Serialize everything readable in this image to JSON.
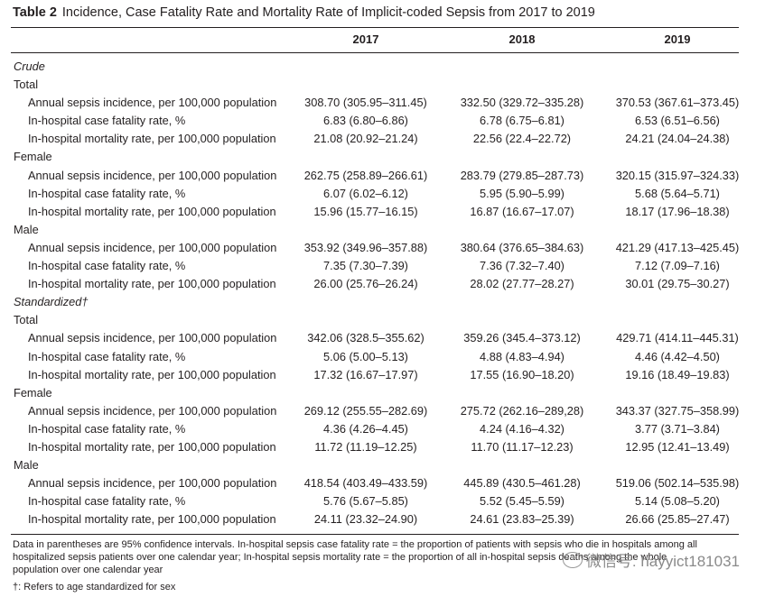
{
  "caption": {
    "label": "Table 2",
    "text": "Incidence, Case Fatality Rate and Mortality Rate of Implicit-coded Sepsis from 2017 to 2019"
  },
  "columns": [
    "2017",
    "2018",
    "2019"
  ],
  "rows": [
    {
      "type": "section",
      "label": "Crude"
    },
    {
      "type": "group",
      "label": "Total"
    },
    {
      "type": "data",
      "label": "Annual sepsis incidence, per 100,000 population",
      "values": [
        "308.70 (305.95–311.45)",
        "332.50 (329.72–335.28)",
        "370.53 (367.61–373.45)"
      ]
    },
    {
      "type": "data",
      "label": "In-hospital case fatality rate, %",
      "values": [
        "6.83 (6.80–6.86)",
        "6.78 (6.75–6.81)",
        "6.53 (6.51–6.56)"
      ]
    },
    {
      "type": "data",
      "label": "In-hospital mortality rate, per 100,000 population",
      "values": [
        "21.08 (20.92–21.24)",
        "22.56 (22.4–22.72)",
        "24.21 (24.04–24.38)"
      ]
    },
    {
      "type": "group",
      "label": "Female"
    },
    {
      "type": "data",
      "label": "Annual sepsis incidence, per 100,000 population",
      "values": [
        "262.75 (258.89–266.61)",
        "283.79 (279.85–287.73)",
        "320.15 (315.97–324.33)"
      ]
    },
    {
      "type": "data",
      "label": "In-hospital case fatality rate, %",
      "values": [
        "6.07 (6.02–6.12)",
        "5.95 (5.90–5.99)",
        "5.68 (5.64–5.71)"
      ]
    },
    {
      "type": "data",
      "label": "In-hospital mortality rate, per 100,000 population",
      "values": [
        "15.96 (15.77–16.15)",
        "16.87 (16.67–17.07)",
        "18.17 (17.96–18.38)"
      ]
    },
    {
      "type": "group",
      "label": "Male"
    },
    {
      "type": "data",
      "label": "Annual sepsis incidence, per 100,000 population",
      "values": [
        "353.92 (349.96–357.88)",
        "380.64 (376.65–384.63)",
        "421.29 (417.13–425.45)"
      ]
    },
    {
      "type": "data",
      "label": "In-hospital case fatality rate, %",
      "values": [
        "7.35 (7.30–7.39)",
        "7.36 (7.32–7.40)",
        "7.12 (7.09–7.16)"
      ]
    },
    {
      "type": "data",
      "label": "In-hospital mortality rate, per 100,000 population",
      "values": [
        "26.00 (25.76–26.24)",
        "28.02 (27.77–28.27)",
        "30.01 (29.75–30.27)"
      ]
    },
    {
      "type": "section",
      "label": "Standardized†"
    },
    {
      "type": "group",
      "label": "Total"
    },
    {
      "type": "data",
      "label": "Annual sepsis incidence, per 100,000 population",
      "values": [
        "342.06 (328.5–355.62)",
        "359.26 (345.4–373.12)",
        "429.71 (414.11–445.31)"
      ]
    },
    {
      "type": "data",
      "label": "In-hospital case fatality rate, %",
      "values": [
        "5.06 (5.00–5.13)",
        "4.88 (4.83–4.94)",
        "4.46 (4.42–4.50)"
      ]
    },
    {
      "type": "data",
      "label": "In-hospital mortality rate, per 100,000 population",
      "values": [
        "17.32 (16.67–17.97)",
        "17.55 (16.90–18.20)",
        "19.16 (18.49–19.83)"
      ]
    },
    {
      "type": "group",
      "label": "Female"
    },
    {
      "type": "data",
      "label": "Annual sepsis incidence, per 100,000 population",
      "values": [
        "269.12 (255.55–282.69)",
        "275.72 (262.16–289,28)",
        "343.37 (327.75–358.99)"
      ]
    },
    {
      "type": "data",
      "label": "In-hospital case fatality rate, %",
      "values": [
        "4.36 (4.26–4.45)",
        "4.24 (4.16–4.32)",
        "3.77 (3.71–3.84)"
      ]
    },
    {
      "type": "data",
      "label": "In-hospital mortality rate, per 100,000 population",
      "values": [
        "11.72 (11.19–12.25)",
        "11.70 (11.17–12.23)",
        "12.95 (12.41–13.49)"
      ]
    },
    {
      "type": "group",
      "label": "Male"
    },
    {
      "type": "data",
      "label": "Annual sepsis incidence, per 100,000 population",
      "values": [
        "418.54 (403.49–433.59)",
        "445.89 (430.5–461.28)",
        "519.06 (502.14–535.98)"
      ]
    },
    {
      "type": "data",
      "label": "In-hospital case fatality rate, %",
      "values": [
        "5.76 (5.67–5.85)",
        "5.52 (5.45–5.59)",
        "5.14 (5.08–5.20)"
      ]
    },
    {
      "type": "data",
      "label": "In-hospital mortality rate, per 100,000 population",
      "values": [
        "24.11 (23.32–24.90)",
        "24.61 (23.83–25.39)",
        "26.66 (25.85–27.47)"
      ]
    }
  ],
  "footnote": "Data in parentheses are 95% confidence intervals. In-hospital sepsis case fatality rate = the proportion of patients with sepsis who die in hospitals among all hospitalized sepsis patients over one calendar year; In-hospital sepsis mortality rate = the proportion of all in-hospital sepsis deaths among the whole population over one calendar year",
  "footnote2": "†: Refers to age standardized for sex",
  "watermark": "微信号: hayyict181031"
}
